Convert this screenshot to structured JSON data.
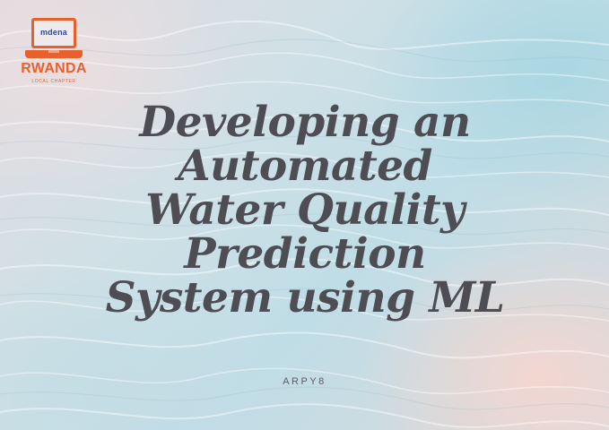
{
  "logo": {
    "screen_text": "mdena",
    "title": "RWANDA",
    "subtitle": "LOCAL CHAPTER",
    "accent_color": "#e8612d",
    "icon": "laptop-icon"
  },
  "headline": {
    "lines": [
      "Developing an",
      "Automated",
      "Water Quality",
      "Prediction",
      "System using ML"
    ],
    "color": "#4f4d54"
  },
  "author": "ARPY8"
}
